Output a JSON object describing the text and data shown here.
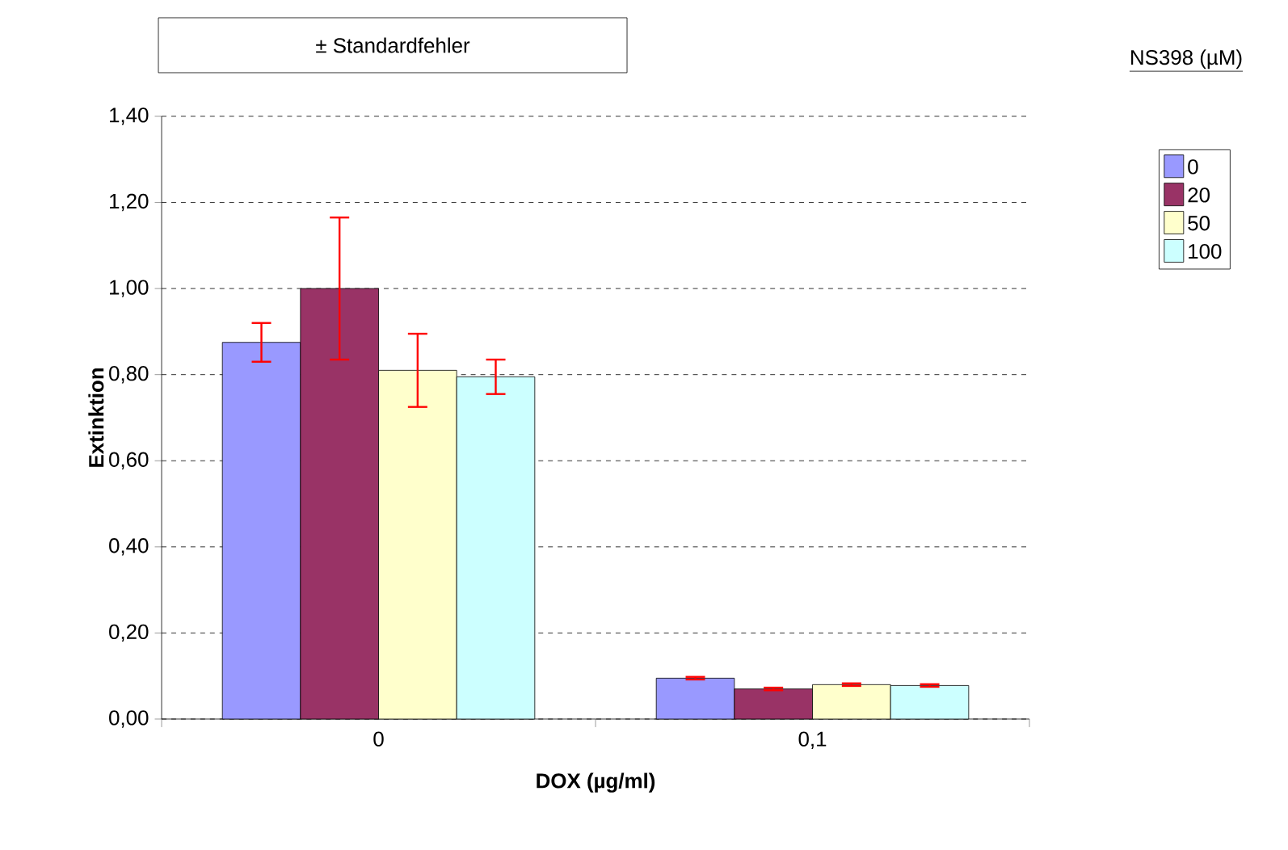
{
  "chart_data": {
    "type": "bar",
    "xlabel": "DOX (µg/ml)",
    "ylabel": "Extinktion",
    "legend_title": "NS398 (µM)",
    "annotations": [
      "± Standardfehler"
    ],
    "categories": [
      "0",
      "0,1"
    ],
    "series": [
      {
        "name": "0",
        "color": "#9999ff",
        "values": [
          0.875,
          0.095
        ],
        "errors": [
          0.045,
          0.003
        ]
      },
      {
        "name": "20",
        "color": "#993366",
        "values": [
          1.0,
          0.07
        ],
        "errors": [
          0.165,
          0.003
        ]
      },
      {
        "name": "50",
        "color": "#ffffcc",
        "values": [
          0.81,
          0.08
        ],
        "errors": [
          0.085,
          0.003
        ]
      },
      {
        "name": "100",
        "color": "#ccffff",
        "values": [
          0.795,
          0.078
        ],
        "errors": [
          0.04,
          0.003
        ]
      }
    ],
    "ylim": [
      0,
      1.4
    ],
    "yticks": [
      {
        "value": 0,
        "label": "0,00"
      },
      {
        "value": 0.2,
        "label": "0,20"
      },
      {
        "value": 0.4,
        "label": "0,40"
      },
      {
        "value": 0.6,
        "label": "0,60"
      },
      {
        "value": 0.8,
        "label": "0,80"
      },
      {
        "value": 1.0,
        "label": "1,00"
      },
      {
        "value": 1.2,
        "label": "1,20"
      },
      {
        "value": 1.4,
        "label": "1,40"
      }
    ],
    "grid": "y",
    "legend": "top right"
  }
}
